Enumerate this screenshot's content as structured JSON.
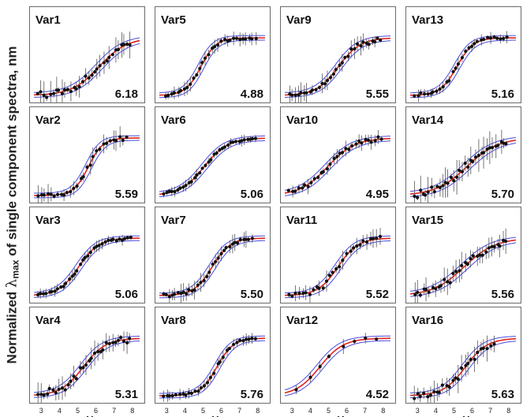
{
  "figure": {
    "ylabel_prefix": "Normalized ",
    "ylabel_lambda": "λ",
    "ylabel_sub": "max",
    "ylabel_suffix": " of single component spectra, nm"
  },
  "chart_data": {
    "type": "scatter",
    "xlabel": "pH",
    "x_ticks": [
      3,
      4,
      5,
      6,
      7,
      8
    ],
    "xlim": [
      2.6,
      8.4
    ],
    "ylim": [
      0,
      1.15
    ],
    "colors": {
      "fit": "#e0201c",
      "ci": "#4a4adf",
      "points": "#111111"
    },
    "panels": [
      {
        "name": "Var1",
        "pka": 6.18,
        "width": 0.75,
        "x_range": [
          2.8,
          8.0
        ],
        "n_points": 32,
        "noise": 0.08
      },
      {
        "name": "Var5",
        "pka": 4.88,
        "width": 0.42,
        "x_range": [
          2.9,
          8.0
        ],
        "n_points": 30,
        "noise": 0.04
      },
      {
        "name": "Var9",
        "pka": 5.55,
        "width": 0.6,
        "x_range": [
          2.8,
          8.0
        ],
        "n_points": 32,
        "noise": 0.06
      },
      {
        "name": "Var13",
        "pka": 5.16,
        "width": 0.45,
        "x_range": [
          2.8,
          8.0
        ],
        "n_points": 30,
        "noise": 0.03
      },
      {
        "name": "Var2",
        "pka": 5.59,
        "width": 0.4,
        "x_range": [
          2.8,
          7.8
        ],
        "n_points": 28,
        "noise": 0.06
      },
      {
        "name": "Var6",
        "pka": 5.06,
        "width": 0.65,
        "x_range": [
          2.8,
          8.0
        ],
        "n_points": 34,
        "noise": 0.03
      },
      {
        "name": "Var10",
        "pka": 4.95,
        "width": 0.75,
        "x_range": [
          2.8,
          8.0
        ],
        "n_points": 30,
        "noise": 0.04
      },
      {
        "name": "Var14",
        "pka": 5.7,
        "width": 0.85,
        "x_range": [
          2.8,
          8.0
        ],
        "n_points": 34,
        "noise": 0.1
      },
      {
        "name": "Var3",
        "pka": 5.06,
        "width": 0.55,
        "x_range": [
          2.8,
          8.0
        ],
        "n_points": 34,
        "noise": 0.03
      },
      {
        "name": "Var7",
        "pka": 5.5,
        "width": 0.5,
        "x_range": [
          2.8,
          7.8
        ],
        "n_points": 32,
        "noise": 0.05
      },
      {
        "name": "Var11",
        "pka": 5.52,
        "width": 0.55,
        "x_range": [
          2.8,
          8.0
        ],
        "n_points": 28,
        "noise": 0.06
      },
      {
        "name": "Var15",
        "pka": 5.56,
        "width": 0.85,
        "x_range": [
          2.8,
          8.0
        ],
        "n_points": 32,
        "noise": 0.08
      },
      {
        "name": "Var4",
        "pka": 5.31,
        "width": 0.62,
        "x_range": [
          2.8,
          8.0
        ],
        "n_points": 32,
        "noise": 0.07
      },
      {
        "name": "Var8",
        "pka": 5.76,
        "width": 0.45,
        "x_range": [
          2.8,
          8.0
        ],
        "n_points": 30,
        "noise": 0.03
      },
      {
        "name": "Var12",
        "pka": 4.52,
        "width": 0.65,
        "x_range": [
          3.1,
          8.0
        ],
        "n_points": 8,
        "noise": 0.04
      },
      {
        "name": "Var16",
        "pka": 5.63,
        "width": 0.6,
        "x_range": [
          2.8,
          7.3
        ],
        "n_points": 26,
        "noise": 0.08
      }
    ]
  }
}
